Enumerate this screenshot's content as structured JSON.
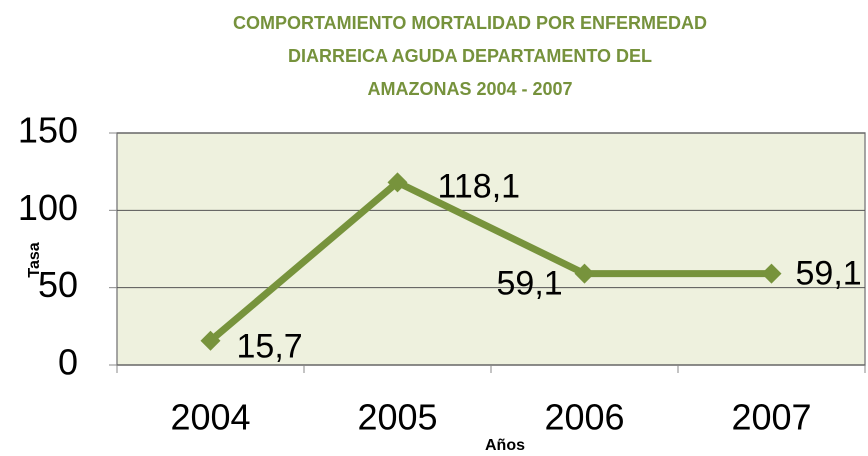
{
  "chart_data": {
    "type": "line",
    "title": [
      "COMPORTAMIENTO MORTALIDAD POR ENFERMEDAD",
      "DIARREICA AGUDA DEPARTAMENTO DEL",
      "AMAZONAS 2004 - 2007"
    ],
    "x_label": "Años",
    "y_label": "Tasa",
    "categories": [
      "2004",
      "2005",
      "2006",
      "2007"
    ],
    "values": [
      15.7,
      118.1,
      59.1,
      59.1
    ],
    "value_labels": [
      "15,7",
      "118,1",
      "59,1",
      "59,1"
    ],
    "color": "#77933c",
    "ylim": [
      0,
      150
    ],
    "yticks": [
      0,
      50,
      100,
      150
    ],
    "grid": true
  }
}
